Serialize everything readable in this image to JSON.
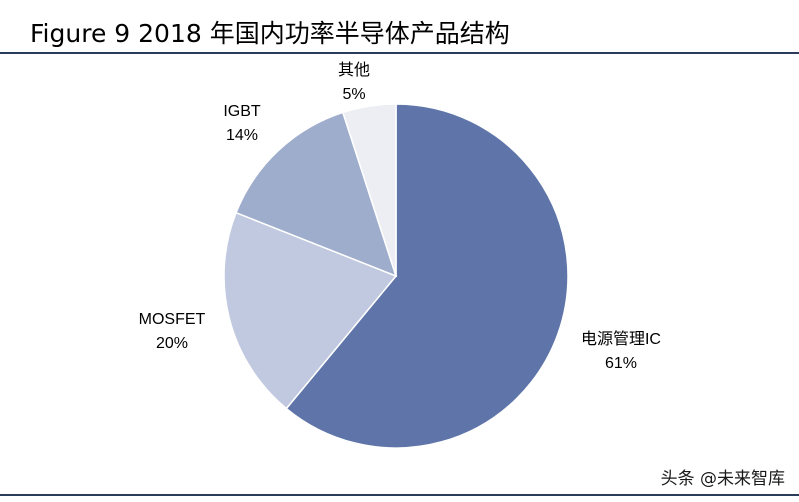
{
  "title": "Figure 9 2018 年国内功率半导体产品结构",
  "watermark": "头条 @未来智库",
  "chart_data": {
    "type": "pie",
    "title": "Figure 9 2018 年国内功率半导体产品结构",
    "start": "12 o'clock",
    "direction": "clockwise",
    "slices": [
      {
        "label": "电源管理IC",
        "value": 61,
        "value_label": "61%",
        "color": "#5f75aa"
      },
      {
        "label": "MOSFET",
        "value": 20,
        "value_label": "20%",
        "color": "#c0c9df"
      },
      {
        "label": "IGBT",
        "value": 14,
        "value_label": "14%",
        "color": "#9eadcc"
      },
      {
        "label": "其他",
        "value": 5,
        "value_label": "5%",
        "color": "#eceef4"
      }
    ]
  }
}
